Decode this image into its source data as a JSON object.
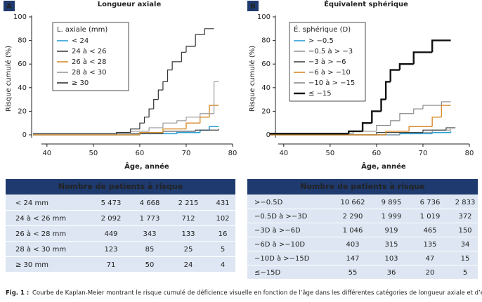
{
  "chart_data": [
    {
      "type": "line",
      "step": true,
      "panel": "A",
      "title": "Longueur axiale",
      "ylabel": "Risque cumulé (%)",
      "xlabel": "Âge, année",
      "legend_title": "L. axiale (mm)",
      "xlim": [
        37,
        80
      ],
      "xticks": [
        40,
        50,
        60,
        70,
        80
      ],
      "ylim": [
        0,
        100
      ],
      "yticks": [
        0,
        20,
        40,
        60,
        80,
        100
      ],
      "series": [
        {
          "name": "< 24",
          "color": "#2a9fd6",
          "width": 1.6,
          "x": [
            37,
            60,
            68,
            73,
            75,
            77
          ],
          "values": [
            0,
            1,
            2,
            4,
            7,
            7
          ]
        },
        {
          "name": "24 à < 26",
          "color": "#444444",
          "width": 1.2,
          "x": [
            37,
            55,
            65,
            72,
            77
          ],
          "values": [
            0,
            1,
            3,
            4,
            5
          ]
        },
        {
          "name": "26 à < 28",
          "color": "#d98b2b",
          "width": 1.4,
          "x": [
            37,
            60,
            65,
            70,
            73,
            75,
            77
          ],
          "values": [
            0,
            2,
            5,
            10,
            15,
            25,
            25
          ]
        },
        {
          "name": "28 à < 30",
          "color": "#9a9a9a",
          "width": 1.2,
          "x": [
            37,
            58,
            62,
            65,
            68,
            70,
            73,
            76,
            77
          ],
          "values": [
            1,
            3,
            6,
            10,
            12,
            15,
            18,
            45,
            45
          ]
        },
        {
          "name": "≥ 30",
          "color": "#333333",
          "width": 1.2,
          "x": [
            37,
            55,
            58,
            60,
            61,
            62,
            63,
            64,
            65,
            66,
            67,
            69,
            70,
            72,
            74,
            76
          ],
          "values": [
            1,
            2,
            5,
            10,
            15,
            22,
            30,
            38,
            45,
            55,
            62,
            70,
            75,
            85,
            90,
            90
          ]
        }
      ]
    },
    {
      "type": "line",
      "step": true,
      "panel": "B",
      "title": "Équivalent sphérique",
      "ylabel": "Risque cumulé (%)",
      "xlabel": "Âge, année",
      "legend_title": "É. sphérique (D)",
      "xlim": [
        37,
        80
      ],
      "xticks": [
        40,
        50,
        60,
        70,
        80
      ],
      "ylim": [
        0,
        100
      ],
      "yticks": [
        0,
        20,
        40,
        60,
        80,
        100
      ],
      "series": [
        {
          "name": "> −0.5",
          "color": "#2a9fd6",
          "width": 1.6,
          "x": [
            37,
            65,
            72,
            76
          ],
          "values": [
            0,
            1,
            2,
            3
          ]
        },
        {
          "name": "−0.5 à > −3",
          "color": "#9a9a9a",
          "width": 1.2,
          "x": [
            37,
            65,
            72,
            76
          ],
          "values": [
            0,
            2,
            4,
            5
          ]
        },
        {
          "name": "−3 à > −6",
          "color": "#444444",
          "width": 1.2,
          "x": [
            37,
            60,
            70,
            75,
            77
          ],
          "values": [
            0,
            2,
            4,
            6,
            6
          ]
        },
        {
          "name": "−6 à > −10",
          "color": "#d98b2b",
          "width": 1.4,
          "x": [
            37,
            62,
            67,
            72,
            74,
            76
          ],
          "values": [
            0,
            3,
            7,
            15,
            25,
            25
          ]
        },
        {
          "name": "−10 à > −15",
          "color": "#8a8a8a",
          "width": 1.2,
          "x": [
            37,
            55,
            60,
            63,
            65,
            68,
            70,
            74,
            76
          ],
          "values": [
            1,
            3,
            8,
            12,
            18,
            22,
            25,
            28,
            28
          ]
        },
        {
          "name": "≤ −15",
          "color": "#111111",
          "width": 2.4,
          "x": [
            37,
            54,
            57,
            59,
            61,
            62,
            63,
            65,
            68,
            72,
            76
          ],
          "values": [
            1,
            3,
            10,
            20,
            30,
            45,
            55,
            60,
            70,
            80,
            80
          ]
        }
      ]
    }
  ],
  "tables": [
    {
      "title": "Nombre de patients à risque",
      "rows": [
        [
          "< 24 mm",
          "5 473",
          "4 668",
          "2 215",
          "431"
        ],
        [
          "24 à < 26 mm",
          "2 092",
          "1 773",
          "712",
          "102"
        ],
        [
          "26 à < 28 mm",
          "449",
          "343",
          "133",
          "16"
        ],
        [
          "28 à < 30 mm",
          "123",
          "85",
          "25",
          "5"
        ],
        [
          "≥ 30 mm",
          "71",
          "50",
          "24",
          "4"
        ]
      ]
    },
    {
      "title": "Nombre de patients à risque",
      "rows": [
        [
          ">−0.5D",
          "10 662",
          "9 895",
          "6 736",
          "2 833"
        ],
        [
          "−0.5D à >−3D",
          "2 290",
          "1 999",
          "1 019",
          "372"
        ],
        [
          "−3D à >−6D",
          "1 046",
          "919",
          "465",
          "150"
        ],
        [
          "−6D à >−10D",
          "403",
          "315",
          "135",
          "34"
        ],
        [
          "−10D à >−15D",
          "147",
          "103",
          "47",
          "15"
        ],
        [
          "≤−15D",
          "55",
          "36",
          "20",
          "5"
        ]
      ]
    }
  ],
  "caption": {
    "label": "Fig. 1 :",
    "text": "Courbe de Kaplan-Meier montrant le risque cumulé de déficience visuelle en fonction de l’âge dans les différentes catégories de longueur axiale et d’équi-"
  }
}
